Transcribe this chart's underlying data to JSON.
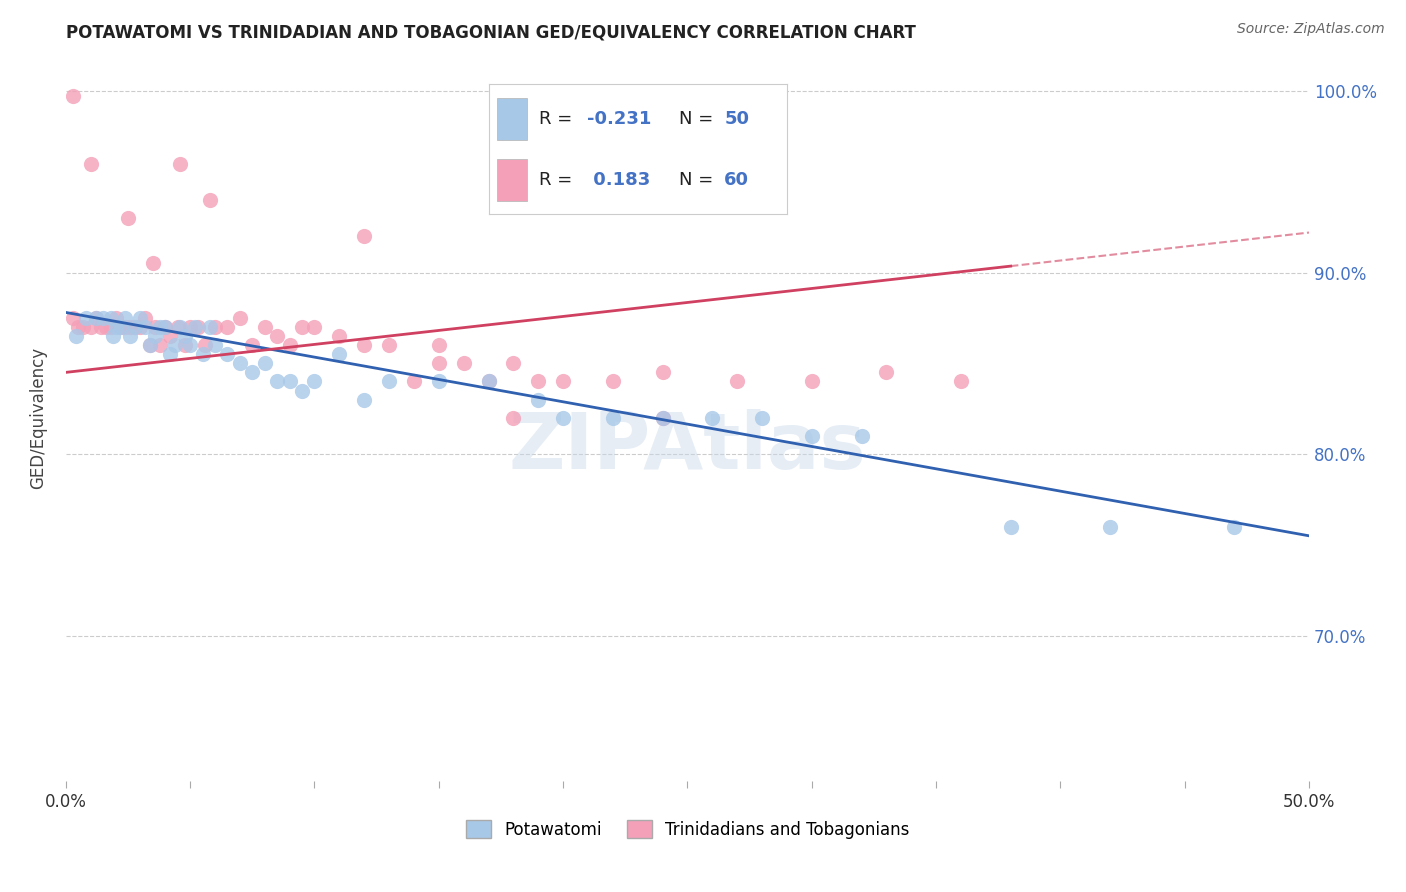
{
  "title": "POTAWATOMI VS TRINIDADIAN AND TOBAGONIAN GED/EQUIVALENCY CORRELATION CHART",
  "source": "Source: ZipAtlas.com",
  "ylabel": "GED/Equivalency",
  "xlim": [
    0.0,
    0.5
  ],
  "ylim": [
    0.62,
    1.02
  ],
  "yticks": [
    0.7,
    0.8,
    0.9,
    1.0
  ],
  "ytick_labels": [
    "70.0%",
    "80.0%",
    "90.0%",
    "100.0%"
  ],
  "color_blue": "#a8c8e8",
  "color_pink": "#f4a0b8",
  "color_line_blue": "#3060b0",
  "color_line_pink": "#d04060",
  "watermark": "ZIPAtlas",
  "series1_label": "Potawatomi",
  "series2_label": "Trinidadians and Tobagonians",
  "r1": "-0.231",
  "n1": "50",
  "r2": "0.183",
  "n2": "60",
  "blue_dots_x": [
    0.004,
    0.008,
    0.012,
    0.015,
    0.018,
    0.019,
    0.02,
    0.022,
    0.024,
    0.026,
    0.028,
    0.03,
    0.032,
    0.034,
    0.036,
    0.038,
    0.04,
    0.042,
    0.044,
    0.046,
    0.048,
    0.05,
    0.052,
    0.055,
    0.058,
    0.06,
    0.065,
    0.07,
    0.075,
    0.08,
    0.085,
    0.09,
    0.095,
    0.1,
    0.11,
    0.12,
    0.13,
    0.15,
    0.17,
    0.19,
    0.2,
    0.22,
    0.24,
    0.26,
    0.28,
    0.3,
    0.32,
    0.38,
    0.42,
    0.47
  ],
  "blue_dots_y": [
    0.865,
    0.875,
    0.875,
    0.875,
    0.875,
    0.865,
    0.87,
    0.87,
    0.875,
    0.865,
    0.87,
    0.875,
    0.87,
    0.86,
    0.865,
    0.87,
    0.87,
    0.855,
    0.86,
    0.87,
    0.865,
    0.86,
    0.87,
    0.855,
    0.87,
    0.86,
    0.855,
    0.85,
    0.845,
    0.85,
    0.84,
    0.84,
    0.835,
    0.84,
    0.855,
    0.83,
    0.84,
    0.84,
    0.84,
    0.83,
    0.82,
    0.82,
    0.82,
    0.82,
    0.82,
    0.81,
    0.81,
    0.76,
    0.76,
    0.76
  ],
  "pink_dots_x": [
    0.003,
    0.005,
    0.007,
    0.01,
    0.012,
    0.014,
    0.016,
    0.018,
    0.02,
    0.022,
    0.024,
    0.026,
    0.028,
    0.03,
    0.032,
    0.034,
    0.036,
    0.038,
    0.04,
    0.042,
    0.045,
    0.048,
    0.05,
    0.053,
    0.056,
    0.06,
    0.065,
    0.07,
    0.075,
    0.08,
    0.085,
    0.09,
    0.095,
    0.1,
    0.11,
    0.12,
    0.13,
    0.14,
    0.15,
    0.16,
    0.17,
    0.18,
    0.19,
    0.2,
    0.22,
    0.24,
    0.27,
    0.3,
    0.33,
    0.36,
    0.003,
    0.01,
    0.025,
    0.035,
    0.046,
    0.058,
    0.12,
    0.15,
    0.18,
    0.24
  ],
  "pink_dots_y": [
    0.875,
    0.87,
    0.87,
    0.87,
    0.875,
    0.87,
    0.87,
    0.87,
    0.875,
    0.87,
    0.87,
    0.87,
    0.87,
    0.87,
    0.875,
    0.86,
    0.87,
    0.86,
    0.87,
    0.865,
    0.87,
    0.86,
    0.87,
    0.87,
    0.86,
    0.87,
    0.87,
    0.875,
    0.86,
    0.87,
    0.865,
    0.86,
    0.87,
    0.87,
    0.865,
    0.86,
    0.86,
    0.84,
    0.85,
    0.85,
    0.84,
    0.85,
    0.84,
    0.84,
    0.84,
    0.845,
    0.84,
    0.84,
    0.845,
    0.84,
    0.997,
    0.96,
    0.93,
    0.905,
    0.96,
    0.94,
    0.92,
    0.86,
    0.82,
    0.82
  ]
}
